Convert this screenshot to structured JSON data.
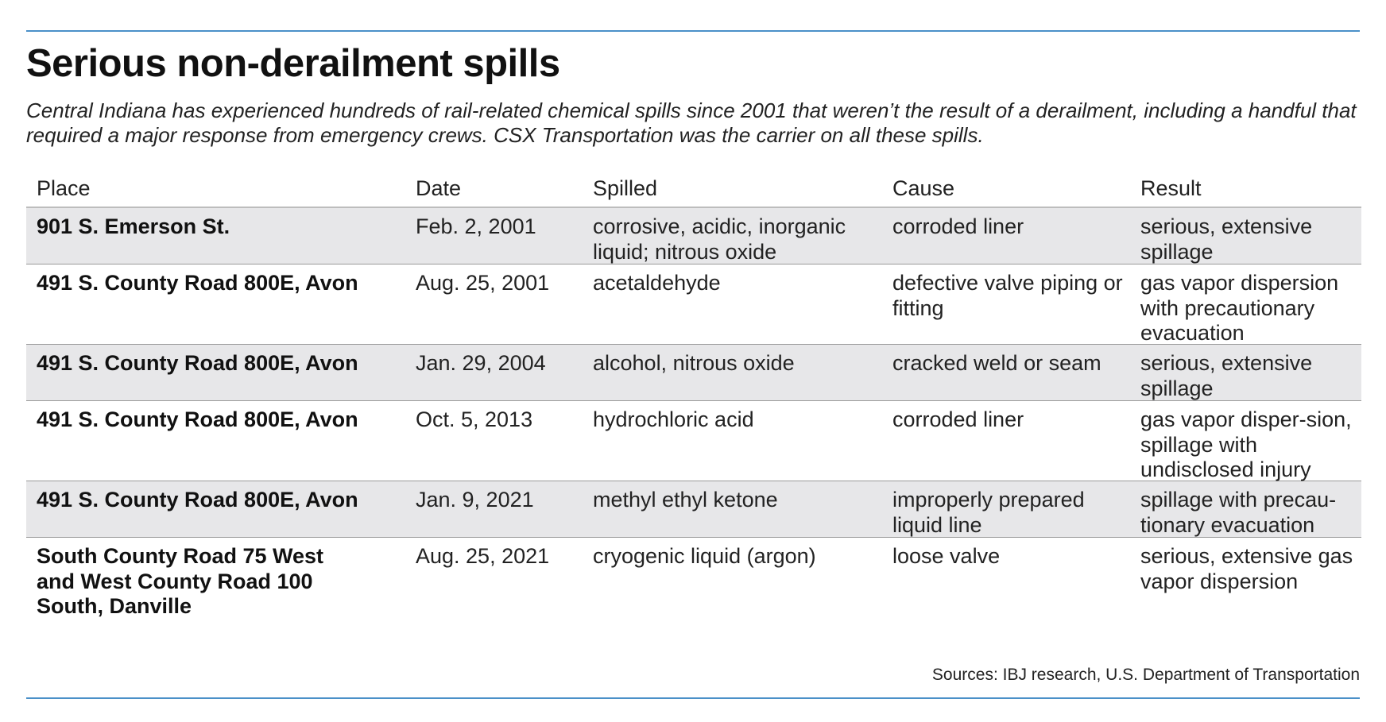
{
  "title": "Serious non-derailment spills",
  "subtitle": "Central Indiana has experienced hundreds of rail-related chemical spills since 2001 that weren’t the result of a derailment, including a handful that required a major response from emergency crews. CSX Transportation was the carrier on all these spills.",
  "table": {
    "headers": {
      "place": "Place",
      "date": "Date",
      "spilled": "Spilled",
      "cause": "Cause",
      "result": "Result"
    },
    "rows": [
      {
        "place": "901 S. Emerson St.",
        "date": "Feb. 2, 2001",
        "spilled": "corrosive, acidic, inorganic liquid; nitrous oxide",
        "cause": "corroded liner",
        "result": "serious, extensive spillage"
      },
      {
        "place": "491 S. County Road 800E, Avon",
        "date": "Aug. 25, 2001",
        "spilled": "acetaldehyde",
        "cause": "defective valve piping or fitting",
        "result": "gas vapor dispersion with precautionary evacuation"
      },
      {
        "place": "491 S. County Road 800E, Avon",
        "date": "Jan. 29, 2004",
        "spilled": "alcohol, nitrous oxide",
        "cause": "cracked weld or seam",
        "result": "serious, extensive spillage"
      },
      {
        "place": "491 S. County Road 800E, Avon",
        "date": "Oct. 5, 2013",
        "spilled": "hydrochloric acid",
        "cause": "corroded liner",
        "result": "gas vapor disper-sion, spillage with undisclosed injury"
      },
      {
        "place": "491 S. County Road 800E, Avon",
        "date": "Jan. 9, 2021",
        "spilled": "methyl ethyl ketone",
        "cause": "improperly prepared liquid line",
        "result": "spillage with precau-tionary evacuation"
      },
      {
        "place": "South County Road 75 West and West County Road 100 South, Danville",
        "date": "Aug. 25, 2021",
        "spilled": "cryogenic liquid (argon)",
        "cause": "loose valve",
        "result": "serious, extensive gas vapor dispersion"
      }
    ]
  },
  "source": "Sources: IBJ research, U.S. Department of Transportation",
  "colors": {
    "rule": "#4a90c8",
    "row_shade": "#e7e7e9",
    "row_divider": "#9a9a9a"
  }
}
